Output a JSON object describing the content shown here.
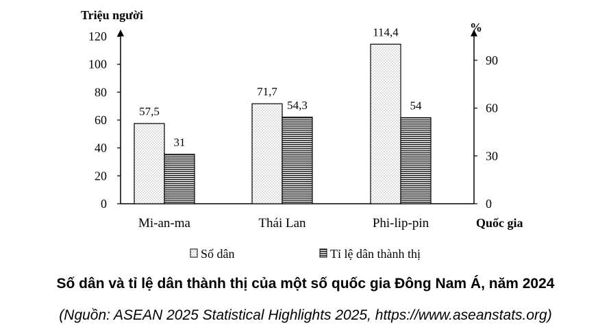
{
  "chart_data": {
    "type": "bar",
    "title": "Số dân và tỉ lệ dân thành thị của một số quốc gia Đông Nam Á, năm 2024",
    "source": "(Nguồn: ASEAN 2025 Statistical Highlights 2025, https://www.aseanstats.org)",
    "categories": [
      "Mi-an-ma",
      "Thái Lan",
      "Phi-lip-pin"
    ],
    "xlabel": "Quốc gia",
    "left_axis": {
      "label": "Triệu người",
      "ylim": [
        0,
        120
      ],
      "ticks": [
        0,
        20,
        40,
        60,
        80,
        100,
        120
      ]
    },
    "right_axis": {
      "label": "%",
      "ylim": [
        0,
        105
      ],
      "ticks": [
        0,
        30,
        60,
        90
      ]
    },
    "series": [
      {
        "name": "Số dân",
        "axis": "left",
        "values": [
          57.5,
          71.7,
          114.4
        ],
        "labels": [
          "57,5",
          "71,7",
          "114,4"
        ],
        "pattern": "dotted"
      },
      {
        "name": "Tỉ lệ dân thành thị",
        "axis": "right",
        "values": [
          31,
          54.3,
          54
        ],
        "labels": [
          "31",
          "54,3",
          "54"
        ],
        "pattern": "horizontal-lines"
      }
    ],
    "legend": [
      "Số dân",
      "Tỉ lệ dân thành thị"
    ],
    "legend_position": "bottom-center"
  }
}
